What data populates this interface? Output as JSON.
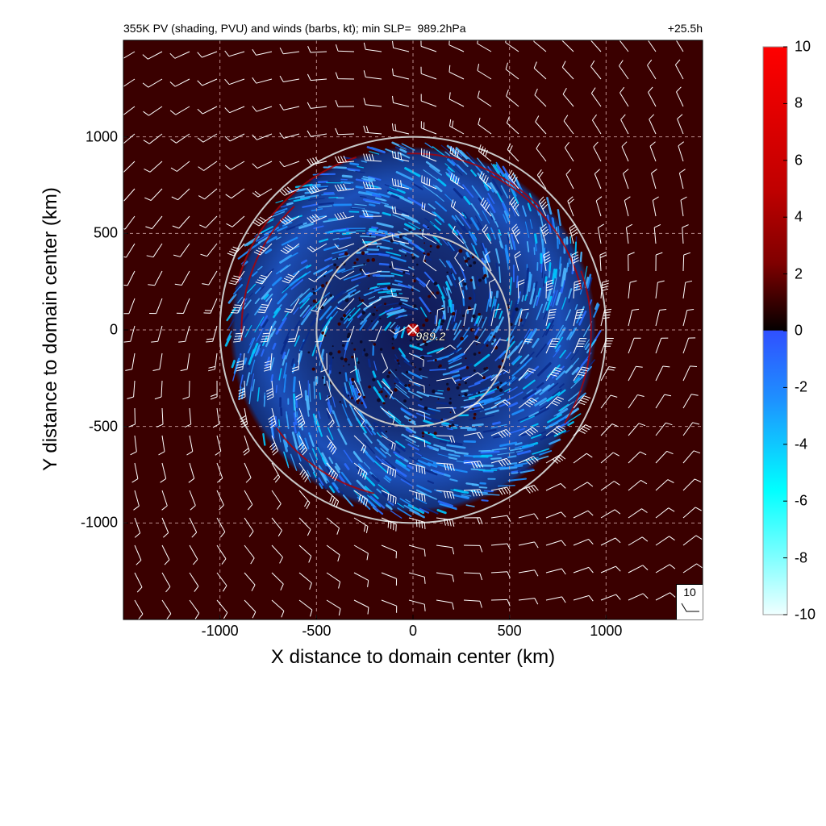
{
  "title_left": "355K PV (shading, PVU) and winds (barbs, kt); min SLP=  989.2hPa",
  "title_right": "+25.5h",
  "chart_data": {
    "type": "heatmap",
    "description_variable": "355K potential vorticity (PVU) with wind barbs (kt)",
    "xlabel": "X distance to domain center (km)",
    "ylabel": "Y distance to domain center (km)",
    "xlim": [
      -1500,
      1500
    ],
    "ylim": [
      -1500,
      1500
    ],
    "xticks": [
      -1000,
      -500,
      0,
      500,
      1000
    ],
    "yticks": [
      1000,
      500,
      0,
      -500,
      -1000
    ],
    "xtick_labels": [
      "-1000",
      "-500",
      "0",
      "500",
      "1000"
    ],
    "ytick_labels": [
      "1000",
      "500",
      "0",
      "-500",
      "-1000"
    ],
    "grid": true,
    "grid_style": "dashed",
    "colorbar": {
      "range": [
        -10,
        10
      ],
      "ticks": [
        10,
        8,
        6,
        4,
        2,
        0,
        -2,
        -4,
        -6,
        -8,
        -10
      ],
      "tick_labels": [
        "10",
        "8",
        "6",
        "4",
        "2",
        "0",
        "-2",
        "-4",
        "-6",
        "-8",
        "-10"
      ],
      "positive_colors": [
        "#1a0000",
        "#4a0000",
        "#800000",
        "#c00000",
        "#ff0000"
      ],
      "negative_colors": [
        "#3050ff",
        "#1e90ff",
        "#00ffff",
        "#80ffff",
        "#f0ffff"
      ]
    },
    "background_pv": 2.8,
    "range_rings_km": [
      500,
      1000
    ],
    "center_marker": {
      "x": 0,
      "y": 0,
      "label": "989.2"
    },
    "wind_reference": {
      "label": "10",
      "speed_kt": 10
    }
  }
}
